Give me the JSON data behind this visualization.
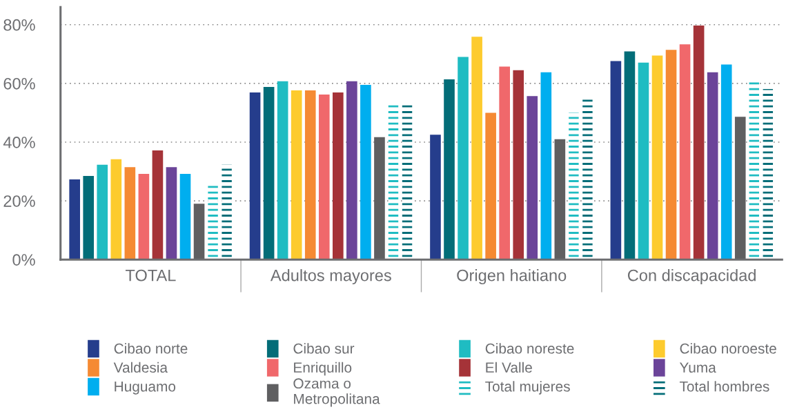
{
  "chart_data": {
    "type": "bar",
    "categories": [
      "TOTAL",
      "Adultos mayores",
      "Origen haitiano",
      "Con discapacidad"
    ],
    "series": [
      {
        "name": "Cibao norte",
        "color": "#253d8c",
        "values": [
          27.3,
          56.9,
          42.5,
          67.6
        ]
      },
      {
        "name": "Cibao sur",
        "color": "#036d78",
        "values": [
          28.5,
          58.8,
          61.4,
          70.9
        ]
      },
      {
        "name": "Cibao noreste",
        "color": "#1fbcc2",
        "values": [
          32.3,
          60.7,
          69.0,
          67.1
        ]
      },
      {
        "name": "Cibao noroeste",
        "color": "#fdcb2e",
        "values": [
          34.2,
          57.6,
          75.9,
          69.5
        ]
      },
      {
        "name": "Valdesia",
        "color": "#f58a33",
        "values": [
          31.5,
          57.6,
          50.0,
          71.4
        ]
      },
      {
        "name": "Enriquillo",
        "color": "#f0686b",
        "values": [
          29.2,
          56.2,
          65.7,
          73.3
        ]
      },
      {
        "name": "El Valle",
        "color": "#a53338",
        "values": [
          37.2,
          56.9,
          64.5,
          79.7
        ]
      },
      {
        "name": "Yuma",
        "color": "#6b4499",
        "values": [
          31.5,
          60.7,
          55.7,
          63.8
        ]
      },
      {
        "name": "Huguamo",
        "color": "#00aeef",
        "values": [
          29.2,
          59.5,
          63.8,
          66.4
        ]
      },
      {
        "name": "Ozama o\nMetropolitana",
        "color": "#5f5f61",
        "values": [
          19.0,
          41.7,
          41.0,
          48.6
        ]
      },
      {
        "name": "Total mujeres",
        "color": "#1fbcc2",
        "line_style": "dashed",
        "values": [
          25.8,
          53.1,
          50.0,
          60.7
        ]
      },
      {
        "name": "Total hombres",
        "color": "#036d78",
        "line_style": "dashed",
        "values": [
          32.3,
          53.1,
          55.0,
          58.1
        ]
      }
    ],
    "ylim": [
      0,
      86
    ],
    "yticks": [
      {
        "value": 0,
        "label": "0%"
      },
      {
        "value": 20,
        "label": "20%"
      },
      {
        "value": 40,
        "label": "40%"
      },
      {
        "value": 60,
        "label": "60%"
      },
      {
        "value": 80,
        "label": "80%"
      }
    ],
    "grid": "y",
    "legend": "bottom"
  }
}
